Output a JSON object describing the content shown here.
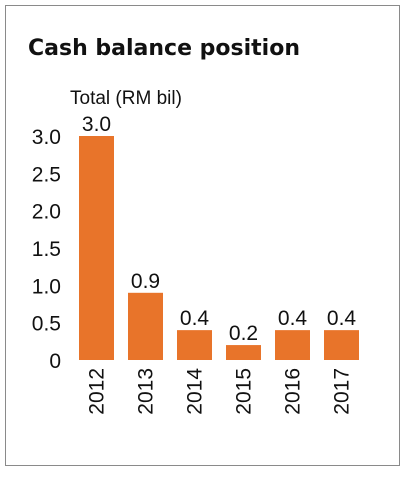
{
  "chart_data": {
    "type": "bar",
    "title": "Cash balance position",
    "ylabel": "Total (RM bil)",
    "xlabel": "",
    "categories": [
      "2012",
      "2013",
      "2014",
      "2015",
      "2016",
      "2017"
    ],
    "values": [
      3.0,
      0.9,
      0.4,
      0.2,
      0.4,
      0.4
    ],
    "value_labels": [
      "3.0",
      "0.9",
      "0.4",
      "0.2",
      "0.4",
      "0.4"
    ],
    "yticks": [
      0,
      0.5,
      1.0,
      1.5,
      2.0,
      2.5,
      3.0
    ],
    "ytick_labels": [
      "0",
      "0.5",
      "1.0",
      "1.5",
      "2.0",
      "2.5",
      "3.0"
    ],
    "ylim": [
      0,
      3.0
    ],
    "grid": false,
    "legend": "none",
    "bar_color": "#e8742a",
    "xtick_rotation": "vertical"
  }
}
